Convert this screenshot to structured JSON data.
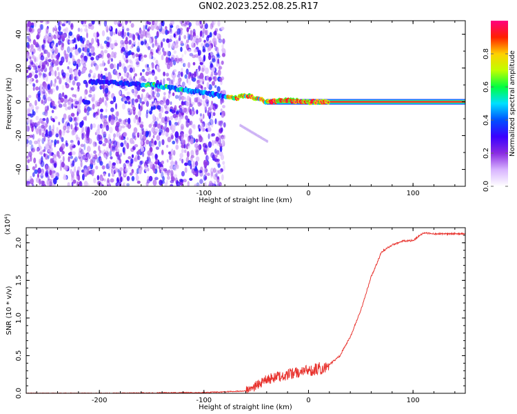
{
  "title": "GN02.2023.252.08.25.R17",
  "chart_data": [
    {
      "type": "heatmap",
      "xlabel": "Height of straight line (km)",
      "ylabel": "Frequency (Hz)",
      "xlim": [
        -270,
        150
      ],
      "ylim": [
        -50,
        48
      ],
      "xticks": [
        -200,
        -100,
        0,
        100
      ],
      "yticks": [
        -40,
        -20,
        0,
        20,
        40
      ],
      "colorbar": {
        "label": "Normalized spectral amplitude",
        "range": [
          0.0,
          1.0
        ],
        "ticks": [
          0.0,
          0.2,
          0.4,
          0.6,
          0.8
        ],
        "colormap": [
          "#ffffff",
          "#d8b4ff",
          "#8a2be2",
          "#3a00ff",
          "#0050ff",
          "#00e0ff",
          "#00ff40",
          "#c0ff00",
          "#ffd000",
          "#ff2000",
          "#ff0080"
        ]
      },
      "ridge": {
        "x": [
          -210,
          -180,
          -150,
          -130,
          -110,
          -95,
          -80,
          -70,
          -60,
          -50,
          -40,
          -20,
          0,
          20,
          60,
          100,
          150
        ],
        "y": [
          12,
          11,
          10,
          8,
          6,
          5,
          3,
          2,
          4,
          2,
          0,
          1,
          0,
          0,
          0,
          0,
          0
        ]
      },
      "noise_x_extent": [
        -270,
        -80
      ]
    },
    {
      "type": "line",
      "xlabel": "Height of straight line (km)",
      "ylabel": "SNR (10 * v/v)",
      "y_multiplier_label": "(x10⁴)",
      "xlim": [
        -270,
        150
      ],
      "ylim": [
        0,
        2.2
      ],
      "xticks": [
        -200,
        -100,
        0,
        100
      ],
      "yticks": [
        0.0,
        0.5,
        1.0,
        1.5,
        2.0
      ],
      "color": "#e8332e",
      "series": [
        {
          "x": [
            -270,
            -200,
            -100,
            -60,
            -50,
            -40,
            -30,
            -20,
            -10,
            0,
            10,
            20,
            30,
            40,
            50,
            60,
            70,
            80,
            90,
            100,
            105,
            110,
            120,
            130,
            150
          ],
          "y": [
            0.0,
            0.0,
            0.01,
            0.03,
            0.1,
            0.18,
            0.22,
            0.25,
            0.28,
            0.3,
            0.33,
            0.38,
            0.5,
            0.75,
            1.1,
            1.55,
            1.88,
            1.97,
            2.02,
            2.03,
            2.08,
            2.13,
            2.12,
            2.12,
            2.12
          ]
        }
      ]
    }
  ]
}
